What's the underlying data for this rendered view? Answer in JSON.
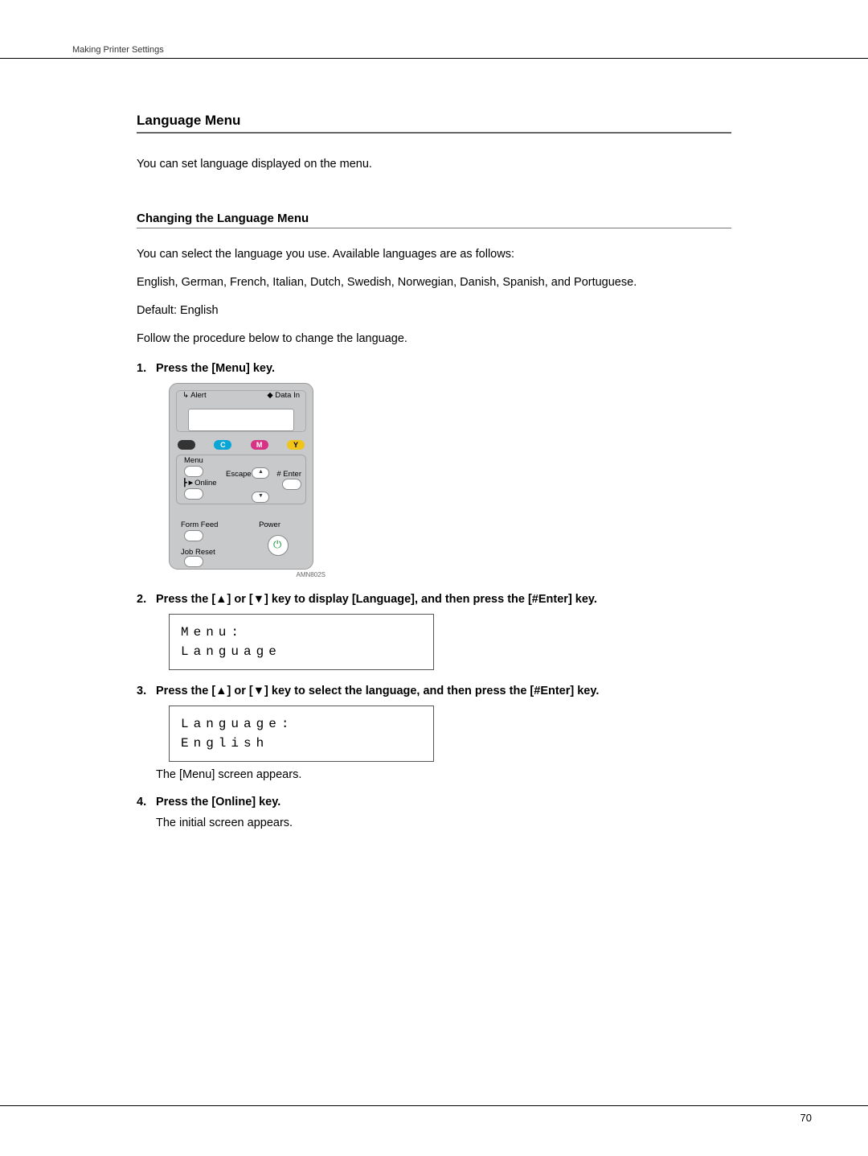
{
  "header": {
    "breadcrumb": "Making Printer Settings"
  },
  "section": {
    "title": "Language Menu",
    "intro": "You can set language displayed on the menu."
  },
  "subsection": {
    "title": "Changing the Language Menu",
    "p1": "You can select the language you use. Available languages are as follows:",
    "p2": "English, German, French, Italian, Dutch, Swedish, Norwegian, Danish, Spanish, and Portuguese.",
    "p3": "Default: English",
    "p4": "Follow the procedure below to change the language."
  },
  "steps": {
    "s1_num": "1.",
    "s1_text": "Press the [Menu] key.",
    "s2_num": "2.",
    "s2_text": "Press the [▲] or [▼] key to display [Language], and then press the [#Enter] key.",
    "s3_num": "3.",
    "s3_text": "Press the [▲] or [▼] key to select the language, and then press the [#Enter] key.",
    "s3_after": "The [Menu] screen appears.",
    "s4_num": "4.",
    "s4_text": "Press the [Online] key.",
    "s4_after": "The initial screen appears."
  },
  "panel": {
    "alert": "↳ Alert",
    "data_in": "◆ Data In",
    "toner_c": "C",
    "toner_m": "M",
    "toner_y": "Y",
    "menu": "Menu",
    "online": "┣►Online",
    "escape": "Escape",
    "enter": "# Enter",
    "form_feed": "Form Feed",
    "job_reset": "Job Reset",
    "power": "Power",
    "code": "AMN802S"
  },
  "lcd1": {
    "line1": "Menu:",
    "line2": "Language"
  },
  "lcd2": {
    "line1": "Language:",
    "line2": "English"
  },
  "page_number": "70"
}
